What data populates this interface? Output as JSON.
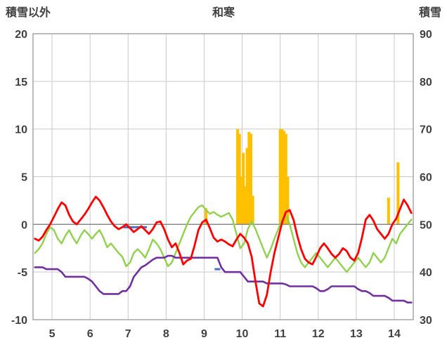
{
  "chart_data": {
    "type": "line",
    "title": "和寒",
    "left_axis_label": "積雪以外",
    "right_axis_label": "積雪",
    "xlim": [
      4.5,
      14.5
    ],
    "left_ylim": [
      -10,
      20
    ],
    "right_ylim": [
      30,
      90
    ],
    "x_ticks": [
      5,
      6,
      7,
      8,
      9,
      10,
      11,
      12,
      13,
      14
    ],
    "left_ticks": [
      20,
      15,
      10,
      5,
      0,
      -5,
      -10
    ],
    "right_ticks": [
      90,
      80,
      70,
      60,
      50,
      40,
      30
    ],
    "grid": true,
    "legend": "none",
    "colors": {
      "grid": "#C9C9C9",
      "zero": "#808080",
      "border": "#A0A0A0",
      "text": "#404040",
      "red": "#FF0000",
      "green": "#92D050",
      "purple": "#7030A0",
      "orange": "#FFC000",
      "blue": "#4472C4"
    },
    "x_start": 4.55,
    "x_step": 0.1,
    "series": [
      {
        "name": "green-line",
        "color": "#92D050",
        "axis": "left",
        "width": 2.4,
        "values": [
          -3.0,
          -2.6,
          -2.0,
          -1.0,
          -0.3,
          -0.6,
          -1.5,
          -2.0,
          -1.2,
          -0.6,
          -1.4,
          -2.0,
          -1.2,
          -0.6,
          -1.0,
          -1.5,
          -1.0,
          -0.6,
          -1.4,
          -2.4,
          -2.0,
          -2.5,
          -3.0,
          -3.4,
          -4.4,
          -4.0,
          -3.0,
          -2.6,
          -3.0,
          -3.5,
          -2.6,
          -1.6,
          -2.0,
          -2.6,
          -3.5,
          -4.4,
          -4.0,
          -3.0,
          -2.0,
          -1.0,
          0.0,
          0.8,
          1.3,
          1.8,
          2.0,
          1.5,
          1.1,
          1.3,
          1.0,
          0.8,
          1.0,
          1.2,
          0.5,
          -1.0,
          -2.5,
          -2.0,
          -0.5,
          0.3,
          -0.5,
          -1.5,
          -2.5,
          -3.5,
          -2.6,
          -1.5,
          -0.5,
          0.5,
          1.0,
          0.0,
          -1.5,
          -3.0,
          -4.0,
          -4.5,
          -4.0,
          -3.5,
          -3.0,
          -3.5,
          -4.0,
          -4.5,
          -4.0,
          -3.5,
          -4.0,
          -4.5,
          -5.0,
          -4.5,
          -4.0,
          -3.5,
          -4.0,
          -4.5,
          -4.0,
          -3.0,
          -3.5,
          -4.0,
          -3.5,
          -2.5,
          -1.5,
          -2.0,
          -1.0,
          -0.5,
          0.0,
          0.5
        ]
      },
      {
        "name": "purple-line",
        "color": "#7030A0",
        "axis": "left",
        "width": 2.6,
        "values": [
          -4.5,
          -4.5,
          -4.5,
          -4.7,
          -4.7,
          -4.7,
          -4.7,
          -5.0,
          -5.5,
          -5.5,
          -5.5,
          -5.5,
          -5.5,
          -5.5,
          -5.7,
          -6.0,
          -6.5,
          -7.0,
          -7.3,
          -7.3,
          -7.3,
          -7.3,
          -7.3,
          -7.0,
          -7.0,
          -6.5,
          -5.5,
          -5.0,
          -4.5,
          -4.3,
          -4.0,
          -3.7,
          -3.5,
          -3.5,
          -3.5,
          -3.3,
          -3.3,
          -3.5,
          -3.5,
          -3.5,
          -3.5,
          -3.5,
          -3.5,
          -3.5,
          -3.5,
          -3.5,
          -3.5,
          -3.5,
          -3.5,
          -4.5,
          -5.0,
          -5.0,
          -5.0,
          -5.0,
          -5.0,
          -5.5,
          -6.0,
          -6.0,
          -6.0,
          -6.0,
          -6.0,
          -6.2,
          -6.2,
          -6.2,
          -6.2,
          -6.2,
          -6.3,
          -6.5,
          -6.5,
          -6.5,
          -6.5,
          -6.5,
          -6.5,
          -6.5,
          -6.7,
          -7.0,
          -7.0,
          -6.8,
          -6.5,
          -6.5,
          -6.5,
          -6.5,
          -6.5,
          -6.5,
          -6.5,
          -6.8,
          -7.0,
          -7.0,
          -7.2,
          -7.5,
          -7.5,
          -7.5,
          -7.5,
          -7.7,
          -8.0,
          -8.0,
          -8.0,
          -8.0,
          -8.2,
          -8.2
        ]
      },
      {
        "name": "red-line",
        "color": "#FF0000",
        "axis": "left",
        "width": 2.8,
        "values": [
          -1.5,
          -1.7,
          -1.3,
          -0.6,
          0.0,
          0.8,
          1.6,
          2.3,
          2.0,
          1.0,
          0.3,
          0.0,
          0.5,
          1.0,
          1.6,
          2.3,
          2.9,
          2.5,
          1.8,
          1.0,
          0.3,
          -0.2,
          -0.5,
          -0.3,
          0.0,
          -0.4,
          -0.8,
          -0.5,
          -0.2,
          -0.6,
          -1.0,
          -0.5,
          0.2,
          0.3,
          -0.5,
          -1.6,
          -2.4,
          -2.0,
          -3.0,
          -4.2,
          -3.8,
          -3.6,
          -2.2,
          -0.6,
          0.2,
          0.5,
          -0.4,
          -1.4,
          -1.8,
          -1.6,
          -1.8,
          -2.1,
          -2.3,
          -1.6,
          -1.0,
          -1.4,
          -2.0,
          -3.4,
          -6.0,
          -8.3,
          -8.6,
          -7.4,
          -5.0,
          -3.0,
          -1.4,
          0.2,
          1.3,
          1.5,
          0.5,
          -1.2,
          -2.6,
          -3.6,
          -4.0,
          -4.2,
          -3.4,
          -2.5,
          -2.0,
          -2.5,
          -3.1,
          -3.5,
          -3.1,
          -2.5,
          -2.8,
          -3.5,
          -3.8,
          -3.0,
          -1.4,
          0.5,
          1.0,
          0.4,
          -0.5,
          -1.0,
          -1.5,
          -1.0,
          0.0,
          0.6,
          1.6,
          2.6,
          2.0,
          1.2
        ]
      }
    ],
    "bars": [
      {
        "name": "orange-bars",
        "color": "#FFC000",
        "style": "bar",
        "points": [
          {
            "x": 9.05,
            "v": 1.7
          },
          {
            "x": 9.88,
            "v": 10.0
          },
          {
            "x": 9.93,
            "v": 9.5
          },
          {
            "x": 9.98,
            "v": 5.0
          },
          {
            "x": 10.03,
            "v": 7.5
          },
          {
            "x": 10.08,
            "v": 4.0
          },
          {
            "x": 10.13,
            "v": 8.0
          },
          {
            "x": 10.18,
            "v": 9.7
          },
          {
            "x": 10.23,
            "v": 9.5
          },
          {
            "x": 10.28,
            "v": 3.0
          },
          {
            "x": 11.0,
            "v": 10.0
          },
          {
            "x": 11.05,
            "v": 10.0
          },
          {
            "x": 11.1,
            "v": 9.8
          },
          {
            "x": 11.15,
            "v": 9.5
          },
          {
            "x": 11.2,
            "v": 5.0
          },
          {
            "x": 13.85,
            "v": 2.8
          },
          {
            "x": 14.1,
            "v": 6.5
          }
        ]
      },
      {
        "name": "blue-marks",
        "color": "#4472C4",
        "style": "dash",
        "points": [
          {
            "x": 6.95,
            "v": -0.3
          },
          {
            "x": 7.1,
            "v": -0.3
          },
          {
            "x": 7.25,
            "v": -0.3
          },
          {
            "x": 7.42,
            "v": -0.3
          },
          {
            "x": 9.35,
            "v": -4.7
          }
        ]
      }
    ]
  }
}
